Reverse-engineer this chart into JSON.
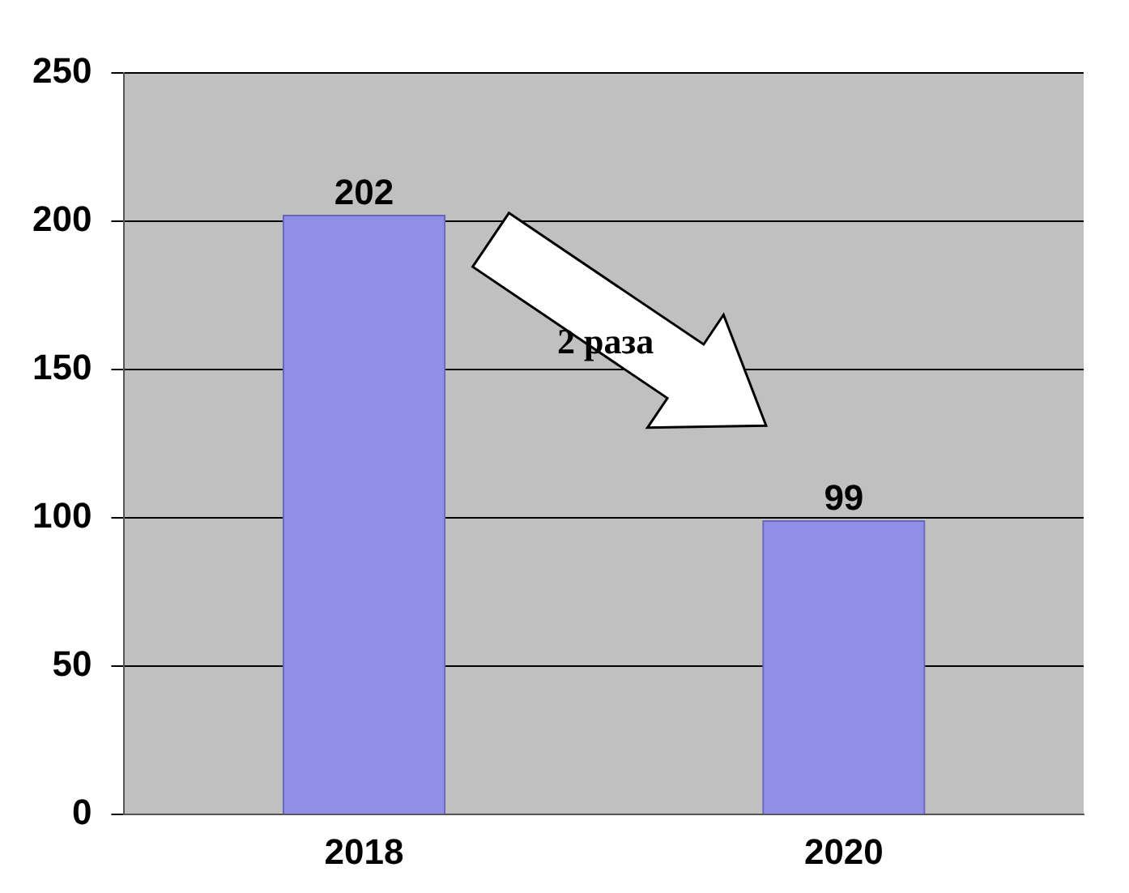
{
  "chart_data": {
    "type": "bar",
    "categories": [
      "2018",
      "2020"
    ],
    "values": [
      202,
      99
    ],
    "color": "#8f8fe8",
    "ylim": [
      0,
      250
    ],
    "yticks": [
      0,
      50,
      100,
      150,
      200,
      250
    ],
    "grid": "y",
    "data_labels": true,
    "annotations": [
      "2 раза"
    ]
  }
}
